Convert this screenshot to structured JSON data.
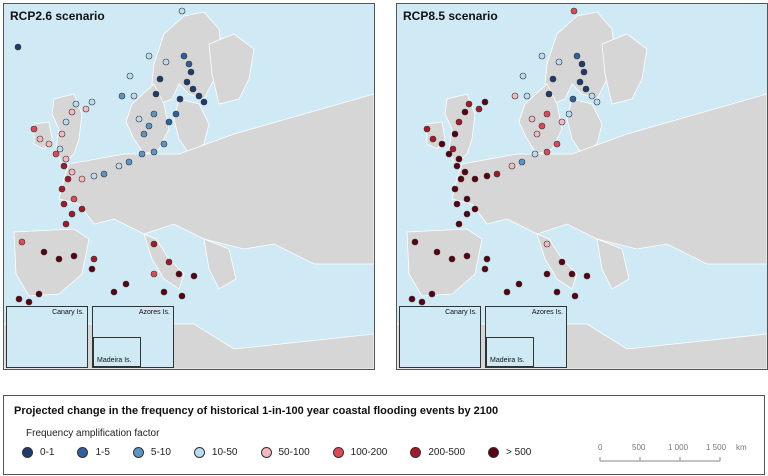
{
  "panels": {
    "left": {
      "title": "RCP2.6 scenario"
    },
    "right": {
      "title": "RCP8.5 scenario"
    }
  },
  "insets": {
    "canary_label": "Canary Is.",
    "azores_label": "Azores Is.",
    "madeira_label": "Madeira Is."
  },
  "legend": {
    "title": "Projected change in the frequency of historical 1-in-100 year coastal flooding events by 2100",
    "subtitle": "Frequency amplification factor",
    "items": [
      {
        "label": "0-1",
        "color": "#1f3a6e"
      },
      {
        "label": "1-5",
        "color": "#2f5f9e"
      },
      {
        "label": "5-10",
        "color": "#5b95c6"
      },
      {
        "label": "10-50",
        "color": "#b9dcf2"
      },
      {
        "label": "50-100",
        "color": "#f7b7bd"
      },
      {
        "label": "100-200",
        "color": "#e0485a"
      },
      {
        "label": "200-500",
        "color": "#a81727"
      },
      {
        "label": "> 500",
        "color": "#5a0010"
      }
    ],
    "scale": {
      "ticks": [
        "0",
        "500",
        "1 000",
        "1 500"
      ],
      "unit": "km"
    }
  },
  "colors": {
    "sea": "#cfe9f5",
    "land": "#d6d6d6",
    "border": "#ffffff"
  }
}
